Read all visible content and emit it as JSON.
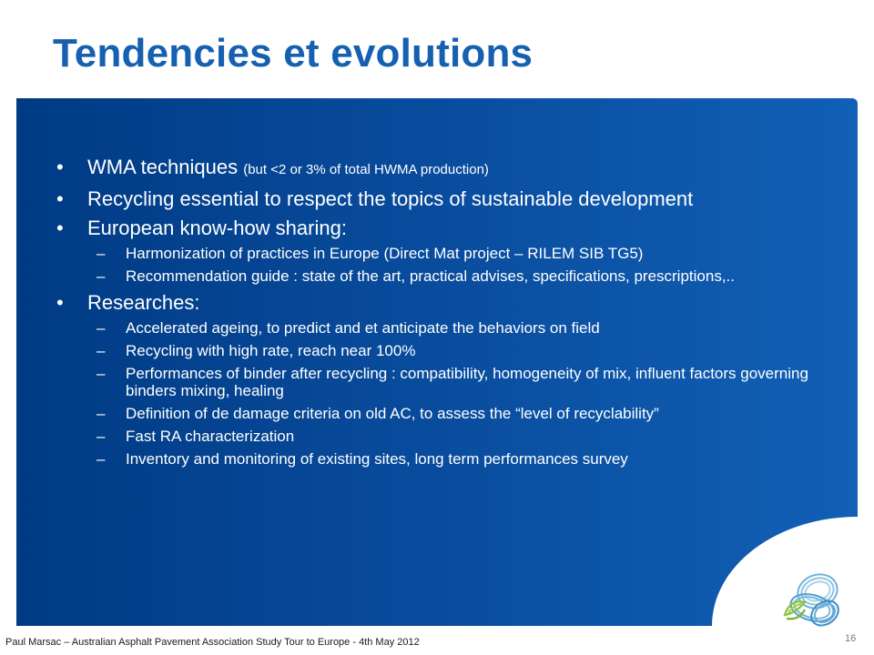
{
  "slide": {
    "title": "Tendencies et evolutions",
    "bullets": [
      {
        "text": "WMA techniques",
        "note": "(but <2 or 3% of total HWMA production)"
      },
      {
        "text": "Recycling essential to respect the topics of sustainable development"
      },
      {
        "text": "European know-how sharing:",
        "subs": [
          "Harmonization of practices in Europe (Direct Mat project – RILEM SIB TG5)",
          "Recommendation guide : state of the art, practical advises, specifications, prescriptions,.."
        ]
      },
      {
        "text": "Researches:",
        "subs": [
          "Accelerated ageing, to predict and et anticipate the behaviors on field",
          "Recycling with high rate, reach near 100%",
          "Performances of binder after recycling : compatibility, homogeneity of mix, influent factors governing binders mixing, healing",
          "Definition of de damage criteria on old AC, to assess the “level of recyclability”",
          "Fast RA characterization",
          "Inventory and monitoring of existing sites, long term performances survey"
        ]
      }
    ],
    "bullet_glyph": "•",
    "dash_glyph": "–",
    "footer": "Paul Marsac – Australian Asphalt Pavement Association Study Tour to Europe - 4th May 2012",
    "page_number": "16",
    "logo_icon": "circular-ribbon-logo-icon",
    "colors": {
      "title": "#1560b0",
      "panel_dark": "#003a84",
      "panel_light": "#1160b6",
      "text": "#ffffff"
    }
  }
}
